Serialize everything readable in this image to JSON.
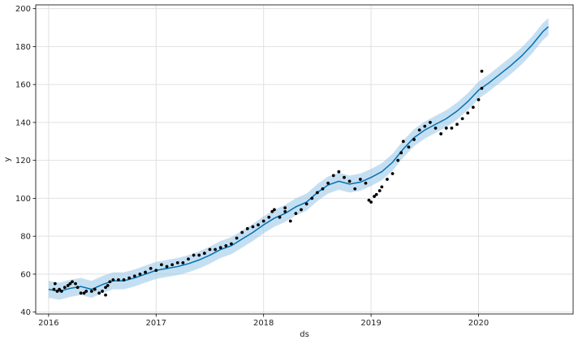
{
  "chart_data": {
    "type": "line",
    "xlabel": "ds",
    "ylabel": "y",
    "xlim": [
      2015.88,
      2020.88
    ],
    "ylim": [
      39,
      202
    ],
    "grid": true,
    "x_ticks": [
      2016,
      2017,
      2018,
      2019,
      2020
    ],
    "x_tick_labels": [
      "2016",
      "2017",
      "2018",
      "2019",
      "2020"
    ],
    "y_ticks": [
      40,
      60,
      80,
      100,
      120,
      140,
      160,
      180,
      200
    ],
    "y_tick_labels": [
      "40",
      "60",
      "80",
      "100",
      "120",
      "140",
      "160",
      "180",
      "200"
    ],
    "colors": {
      "forecast_line": "#0072B2",
      "uncertainty_band": "#9ecae9",
      "observed_points": "#000000",
      "grid": "#e0e0e0",
      "axes": "#000000"
    },
    "forecast": {
      "x": [
        2016.0,
        2016.1,
        2016.2,
        2016.3,
        2016.4,
        2016.5,
        2016.6,
        2016.7,
        2016.8,
        2016.9,
        2017.0,
        2017.1,
        2017.2,
        2017.3,
        2017.4,
        2017.5,
        2017.6,
        2017.7,
        2017.8,
        2017.9,
        2018.0,
        2018.1,
        2018.2,
        2018.3,
        2018.4,
        2018.5,
        2018.6,
        2018.7,
        2018.8,
        2018.9,
        2019.0,
        2019.1,
        2019.2,
        2019.3,
        2019.4,
        2019.5,
        2019.6,
        2019.7,
        2019.8,
        2019.9,
        2020.0,
        2020.1,
        2020.2,
        2020.3,
        2020.4,
        2020.5,
        2020.6,
        2020.65
      ],
      "yhat": [
        52.0,
        51.0,
        52.5,
        53.5,
        52.0,
        54.5,
        56.5,
        56.5,
        58.0,
        60.0,
        62.0,
        63.0,
        64.0,
        65.5,
        67.5,
        70.0,
        73.0,
        75.0,
        78.5,
        82.0,
        86.0,
        89.5,
        92.0,
        95.5,
        98.0,
        103.0,
        107.0,
        109.0,
        107.5,
        108.5,
        111.0,
        114.0,
        119.0,
        126.0,
        132.0,
        136.0,
        139.0,
        142.0,
        146.0,
        151.0,
        157.0,
        161.0,
        165.5,
        170.0,
        175.0,
        181.0,
        188.0,
        190.5
      ],
      "yhat_lower": [
        47.5,
        46.5,
        48.0,
        49.0,
        47.5,
        50.0,
        52.0,
        52.0,
        53.5,
        55.5,
        57.5,
        58.5,
        59.5,
        61.0,
        63.0,
        65.5,
        68.5,
        70.5,
        74.0,
        77.5,
        81.5,
        85.0,
        87.5,
        91.0,
        93.5,
        98.5,
        102.5,
        104.5,
        103.0,
        104.0,
        106.5,
        109.5,
        114.5,
        121.5,
        127.5,
        131.5,
        134.5,
        137.5,
        141.5,
        146.5,
        152.5,
        156.5,
        161.0,
        165.5,
        170.5,
        176.5,
        183.5,
        186.0
      ],
      "yhat_upper": [
        56.5,
        55.5,
        57.0,
        58.0,
        56.5,
        59.0,
        61.0,
        61.0,
        62.5,
        64.5,
        66.5,
        67.5,
        68.5,
        70.0,
        72.0,
        74.5,
        77.5,
        79.5,
        83.0,
        86.5,
        90.5,
        94.0,
        96.5,
        100.0,
        102.5,
        107.5,
        111.5,
        113.5,
        112.0,
        113.0,
        115.5,
        118.5,
        123.5,
        130.5,
        136.5,
        140.5,
        143.5,
        146.5,
        150.5,
        155.5,
        161.5,
        165.5,
        170.0,
        174.5,
        179.5,
        185.5,
        192.5,
        195.0
      ]
    },
    "observed": {
      "x": [
        2016.05,
        2016.06,
        2016.08,
        2016.1,
        2016.12,
        2016.15,
        2016.18,
        2016.2,
        2016.22,
        2016.25,
        2016.27,
        2016.3,
        2016.33,
        2016.35,
        2016.4,
        2016.43,
        2016.47,
        2016.5,
        2016.53,
        2016.55,
        2016.57,
        2016.6,
        2016.65,
        2016.7,
        2016.75,
        2016.8,
        2016.85,
        2016.9,
        2016.95,
        2017.0,
        2017.05,
        2017.1,
        2017.15,
        2017.2,
        2017.25,
        2017.3,
        2017.35,
        2017.4,
        2017.45,
        2017.5,
        2017.55,
        2017.6,
        2017.65,
        2017.7,
        2017.75,
        2017.8,
        2017.85,
        2017.9,
        2017.95,
        2018.0,
        2018.05,
        2018.08,
        2018.1,
        2018.15,
        2018.2,
        2018.2,
        2018.25,
        2018.3,
        2018.35,
        2018.4,
        2018.45,
        2018.5,
        2018.55,
        2018.6,
        2018.65,
        2018.7,
        2018.75,
        2018.8,
        2018.85,
        2018.9,
        2018.95,
        2018.98,
        2019.0,
        2019.03,
        2019.05,
        2019.08,
        2019.1,
        2019.15,
        2019.2,
        2019.25,
        2019.28,
        2019.3,
        2019.35,
        2019.4,
        2019.45,
        2019.5,
        2019.55,
        2019.6,
        2019.65,
        2019.7,
        2019.75,
        2019.8,
        2019.85,
        2019.9,
        2019.95,
        2020.0,
        2020.03
      ],
      "y": [
        52,
        55,
        51,
        52,
        51,
        53,
        54,
        55,
        56,
        55,
        53,
        50,
        50,
        51,
        51,
        52,
        50,
        51,
        53,
        54,
        56,
        57,
        57,
        57,
        58,
        59,
        60,
        61,
        63,
        62,
        65,
        64,
        65,
        66,
        66,
        68,
        70,
        70,
        71,
        73,
        73,
        74,
        75,
        76,
        79,
        82,
        84,
        85,
        86,
        88,
        90,
        93,
        94,
        90,
        93,
        95,
        88,
        92,
        94,
        97,
        100,
        103,
        105,
        108,
        112,
        114,
        111,
        109,
        105,
        110,
        108,
        99,
        98,
        101,
        102,
        104,
        106,
        110,
        113,
        120,
        124,
        130,
        127,
        131,
        136,
        138,
        140,
        137,
        134,
        137,
        137,
        139,
        142,
        145,
        148,
        152,
        158
      ],
      "extra": {
        "x": [
          2016.53,
          2020.03
        ],
        "y": [
          49,
          167
        ]
      }
    }
  }
}
